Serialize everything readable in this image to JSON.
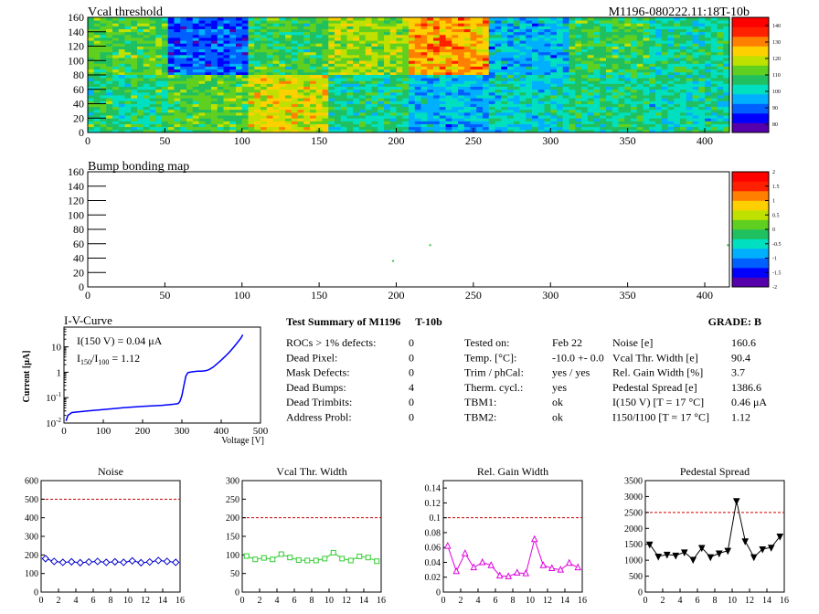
{
  "header": {
    "title": "Vcal threshold",
    "module_id": "M1196-080222.11:18T-10b"
  },
  "colors": {
    "frame": "#000000",
    "iv_curve": "#0000ff",
    "noise_series": "#0000cc",
    "vcal_series": "#33cc33",
    "gain_series": "#e000e0",
    "pedestal_series": "#000000",
    "limit_line": "#cc0000",
    "colorbar": [
      "#5500aa",
      "#0000ff",
      "#0060ff",
      "#00b0ff",
      "#00e0c0",
      "#20c060",
      "#60d020",
      "#c0e000",
      "#ffd000",
      "#ff8000",
      "#ff2000",
      "#ff0000"
    ]
  },
  "chart_data": [
    {
      "type": "heatmap",
      "title": "Vcal threshold",
      "x_ticks": [
        "0",
        "50",
        "100",
        "150",
        "200",
        "250",
        "300",
        "350",
        "400"
      ],
      "y_ticks": [
        "0",
        "20",
        "40",
        "60",
        "80",
        "100",
        "120",
        "140",
        "160"
      ],
      "xlim": [
        0,
        416
      ],
      "ylim": [
        0,
        160
      ],
      "z_ticks": [
        "80",
        "90",
        "100",
        "110",
        "120",
        "130",
        "140"
      ],
      "zlim": [
        75,
        140
      ],
      "roc_cols": 52,
      "roc_rows": 80,
      "roc_means_top": [
        108,
        88,
        106,
        113,
        124,
        95,
        106,
        102,
        104
      ],
      "roc_means_bottom": [
        104,
        108,
        118,
        102,
        95,
        99,
        103,
        101,
        108
      ]
    },
    {
      "type": "heatmap",
      "title": "Bump bonding map",
      "x_ticks": [
        "0",
        "50",
        "100",
        "150",
        "200",
        "250",
        "300",
        "350",
        "400"
      ],
      "y_ticks": [
        "0",
        "20",
        "40",
        "60",
        "80",
        "100",
        "120",
        "140",
        "160"
      ],
      "xlim": [
        0,
        416
      ],
      "ylim": [
        0,
        160
      ],
      "z_ticks": [
        "2",
        "1.5",
        "1",
        "0.5",
        "0",
        "-0.5",
        "-1",
        "-1.5",
        "-2"
      ],
      "zlim": [
        -2,
        2
      ],
      "points": [
        [
          198,
          36
        ],
        [
          222,
          58
        ],
        [
          415,
          58
        ]
      ]
    },
    {
      "type": "line",
      "title": "I-V-Curve",
      "xlabel": "Voltage [V]",
      "ylabel": "Current [μA]",
      "log_y": true,
      "xlim": [
        0,
        500
      ],
      "ylim": [
        0.01,
        60
      ],
      "x_ticks": [
        "0",
        "100",
        "200",
        "300",
        "400",
        "500"
      ],
      "annotation_1": "I(150 V) = 0.04 μA",
      "annotation_2_pre": "I",
      "annotation_2_sub1": "150",
      "annotation_2_mid": "/I",
      "annotation_2_sub2": "100",
      "annotation_2_post": " =  1.12",
      "x": [
        5,
        10,
        20,
        40,
        60,
        100,
        150,
        200,
        250,
        280,
        290,
        295,
        300,
        305,
        310,
        315,
        320,
        330,
        340,
        350,
        360,
        365,
        370,
        380,
        390,
        400,
        410,
        420,
        430,
        440,
        450,
        455
      ],
      "y": [
        0.012,
        0.02,
        0.026,
        0.028,
        0.03,
        0.034,
        0.04,
        0.045,
        0.05,
        0.055,
        0.058,
        0.07,
        0.12,
        0.3,
        0.7,
        0.95,
        1.0,
        1.05,
        1.1,
        1.1,
        1.15,
        1.2,
        1.3,
        1.6,
        2.2,
        3.0,
        4.2,
        6.0,
        9.0,
        14,
        22,
        30
      ]
    },
    {
      "type": "line",
      "title": "Noise",
      "xlim": [
        0,
        16
      ],
      "ylim": [
        0,
        600
      ],
      "limit": 500,
      "x_ticks": [
        "0",
        "2",
        "4",
        "6",
        "8",
        "10",
        "12",
        "14",
        "16"
      ],
      "y_ticks": [
        "0",
        "100",
        "200",
        "300",
        "400",
        "500",
        "600"
      ],
      "marker": "diamond",
      "x": [
        0.5,
        1.5,
        2.5,
        3.5,
        4.5,
        5.5,
        6.5,
        7.5,
        8.5,
        9.5,
        10.5,
        11.5,
        12.5,
        13.5,
        14.5,
        15.5
      ],
      "y": [
        180,
        165,
        160,
        163,
        158,
        162,
        165,
        160,
        163,
        160,
        168,
        158,
        162,
        170,
        165,
        160
      ]
    },
    {
      "type": "line",
      "title": "Vcal Thr. Width",
      "xlim": [
        0,
        16
      ],
      "ylim": [
        0,
        300
      ],
      "limit": 200,
      "x_ticks": [
        "0",
        "2",
        "4",
        "6",
        "8",
        "10",
        "12",
        "14",
        "16"
      ],
      "y_ticks": [
        "0",
        "50",
        "100",
        "150",
        "200",
        "250",
        "300"
      ],
      "marker": "square",
      "x": [
        0.5,
        1.5,
        2.5,
        3.5,
        4.5,
        5.5,
        6.5,
        7.5,
        8.5,
        9.5,
        10.5,
        11.5,
        12.5,
        13.5,
        14.5,
        15.5
      ],
      "y": [
        97,
        88,
        92,
        88,
        102,
        93,
        86,
        85,
        85,
        90,
        106,
        90,
        85,
        96,
        93,
        83
      ]
    },
    {
      "type": "line",
      "title": "Rel. Gain Width",
      "xlim": [
        0,
        16
      ],
      "ylim": [
        0,
        0.15
      ],
      "limit": 0.1,
      "x_ticks": [
        "0",
        "2",
        "4",
        "6",
        "8",
        "10",
        "12",
        "14",
        "16"
      ],
      "y_ticks": [
        "0",
        "0.02",
        "0.04",
        "0.06",
        "0.08",
        "0.1",
        "0.12",
        "0.14"
      ],
      "marker": "triangle",
      "x": [
        0.5,
        1.5,
        2.5,
        3.5,
        4.5,
        5.5,
        6.5,
        7.5,
        8.5,
        9.5,
        10.5,
        11.5,
        12.5,
        13.5,
        14.5,
        15.5
      ],
      "y": [
        0.062,
        0.028,
        0.052,
        0.033,
        0.04,
        0.036,
        0.022,
        0.021,
        0.026,
        0.025,
        0.071,
        0.036,
        0.032,
        0.03,
        0.039,
        0.033
      ]
    },
    {
      "type": "line",
      "title": "Pedestal Spread",
      "xlim": [
        0,
        16
      ],
      "ylim": [
        0,
        3500
      ],
      "limit": 2500,
      "x_ticks": [
        "0",
        "2",
        "4",
        "6",
        "8",
        "10",
        "12",
        "14",
        "16"
      ],
      "y_ticks": [
        "0",
        "500",
        "1000",
        "1500",
        "2000",
        "2500",
        "3000",
        "3500"
      ],
      "marker": "triangle-down",
      "x": [
        0.5,
        1.5,
        2.5,
        3.5,
        4.5,
        5.5,
        6.5,
        7.5,
        8.5,
        9.5,
        10.5,
        11.5,
        12.5,
        13.5,
        14.5,
        15.5
      ],
      "y": [
        1500,
        1120,
        1180,
        1150,
        1250,
        1020,
        1390,
        1100,
        1220,
        1300,
        2860,
        1600,
        1100,
        1350,
        1400,
        1750
      ]
    }
  ],
  "summary": {
    "title_pre": "Test Summary of M1196",
    "title_module_suffix": "T-10b",
    "grade_label": "GRADE:  B",
    "left": [
      {
        "label": "ROCs > 1% defects:",
        "value": "0"
      },
      {
        "label": "Dead Pixel:",
        "value": "0"
      },
      {
        "label": "Mask Defects:",
        "value": "0"
      },
      {
        "label": "Dead Bumps:",
        "value": "4"
      },
      {
        "label": "Dead Trimbits:",
        "value": "0"
      },
      {
        "label": "Address Probl:",
        "value": "0"
      }
    ],
    "mid": [
      {
        "label": "Tested on:",
        "value": "Feb 22"
      },
      {
        "label": "Temp. [°C]:",
        "value": "-10.0 +- 0.0"
      },
      {
        "label": "Trim / phCal:",
        "value": "yes / yes"
      },
      {
        "label": "Therm. cycl.:",
        "value": "yes"
      },
      {
        "label": "TBM1:",
        "value": "ok"
      },
      {
        "label": "TBM2:",
        "value": "ok"
      }
    ],
    "right": [
      {
        "label": "Noise [e]",
        "value": "160.6"
      },
      {
        "label": "Vcal Thr. Width [e]",
        "value": "90.4"
      },
      {
        "label": "Rel. Gain Width [%]",
        "value": "3.7"
      },
      {
        "label": "Pedestal Spread [e]",
        "value": "1386.6"
      },
      {
        "label": "I(150 V) [T = 17 °C]",
        "value": "0.46 μA"
      },
      {
        "label": "I150/I100  [T = 17 °C]",
        "value": "1.12"
      }
    ]
  }
}
